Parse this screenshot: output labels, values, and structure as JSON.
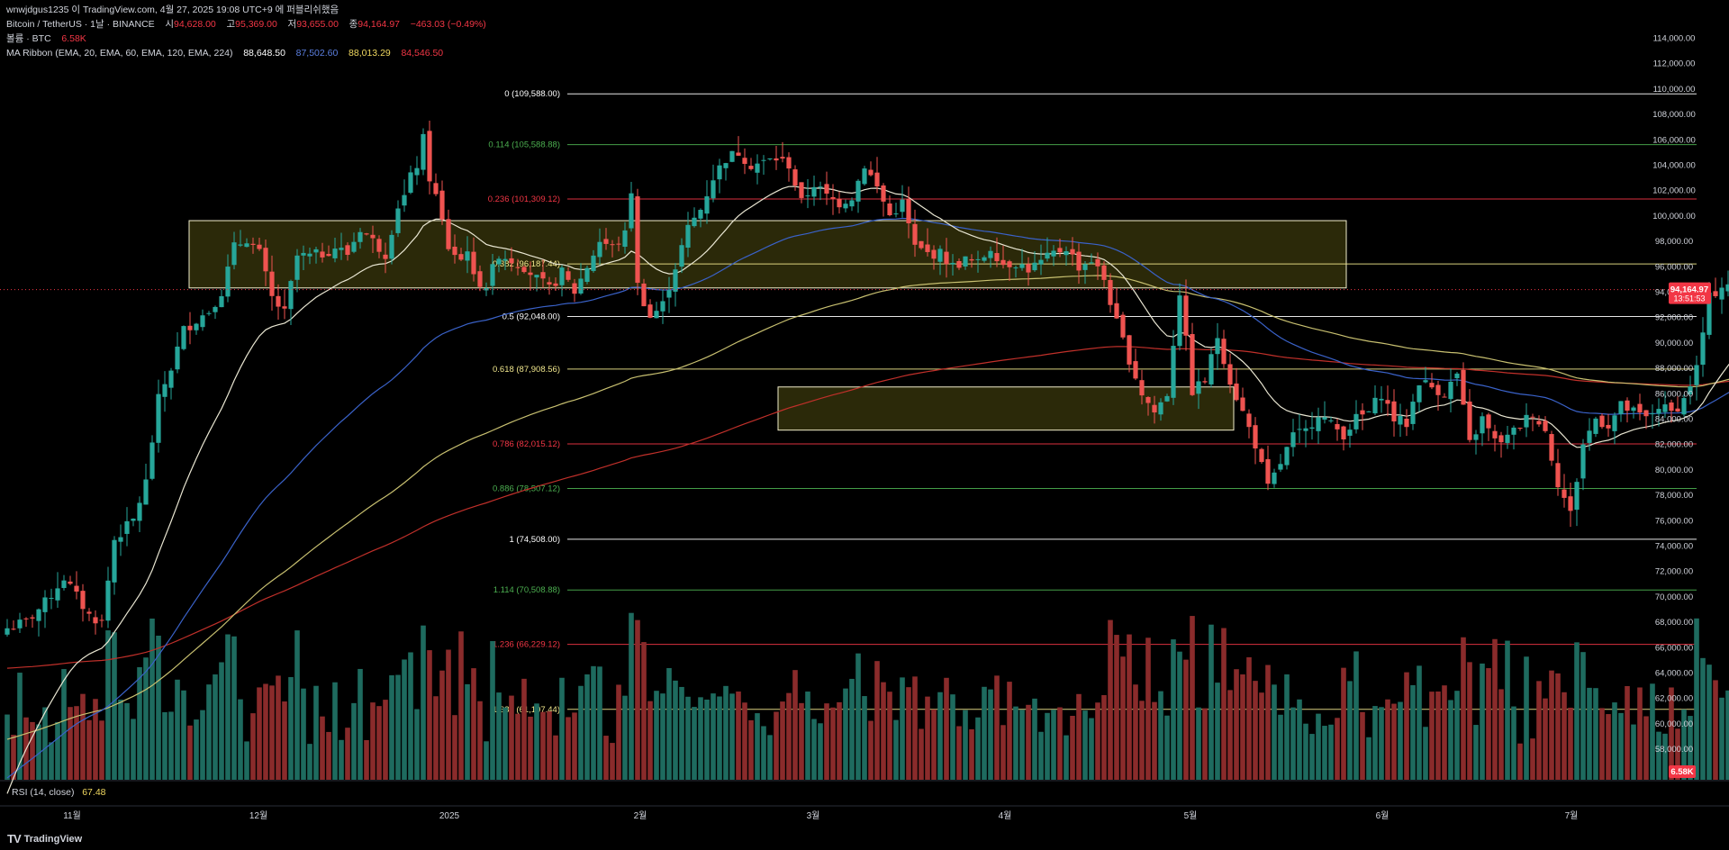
{
  "header": {
    "line1_prefix": "wnwjdgus1235 이 TradingView.com, 4월 27, 2025 19:08 UTC+9 에 퍼블리쉬했음",
    "symbol": "Bitcoin / TetherUS · 1날 · BINANCE",
    "open_label": "시",
    "open": "94,628.00",
    "high_label": "고",
    "high": "95,369.00",
    "low_label": "저",
    "low": "93,655.00",
    "close_label": "종",
    "close": "94,164.97",
    "change": "−463.03 (−0.49%)",
    "volume_label": "볼륨 · BTC",
    "volume_value": "6.58K",
    "ribbon_label": "MA Ribbon (EMA, 20, EMA, 60, EMA, 120, EMA, 224)",
    "ribbon_values": [
      "88,648.50",
      "87,502.60",
      "88,013.29",
      "84,546.50"
    ]
  },
  "rsi": {
    "label": "RSI (14, close)",
    "value": "67.48"
  },
  "brand": {
    "name": "TradingView",
    "mark": "TV"
  },
  "colors": {
    "up": "#26a69a",
    "down": "#ef5350",
    "ema20": "#e9e6d2",
    "ema60": "#3a62c9",
    "ema120": "#c8c070",
    "ema224": "#c0302a",
    "zone_fill": "rgba(96,90,20,0.45)",
    "zone_stroke": "#f2eecb",
    "price_tag": "#f23645"
  },
  "chart_data": {
    "type": "candlestick",
    "price_ticks": [
      "114,000.00",
      "112,000.00",
      "110,000.00",
      "108,000.00",
      "106,000.00",
      "104,000.00",
      "102,000.00",
      "100,000.00",
      "98,000.00",
      "96,000.00",
      "94,000.00",
      "92,000.00",
      "90,000.00",
      "88,000.00",
      "86,000.00",
      "84,000.00",
      "82,000.00",
      "80,000.00",
      "78,000.00",
      "76,000.00",
      "74,000.00",
      "72,000.00",
      "70,000.00",
      "68,000.00",
      "66,000.00",
      "64,000.00",
      "62,000.00",
      "60,000.00",
      "58,000.00",
      "00"
    ],
    "time_ticks": [
      "11월",
      "12월",
      "2025",
      "2월",
      "3월",
      "4월",
      "5월",
      "6월",
      "7월"
    ],
    "last_price": {
      "value": "94,164.97",
      "countdown": "13:51:53"
    },
    "volume_tag": "6.58K",
    "fib_levels": [
      {
        "label": "0 (109,588.00)",
        "price": 109588,
        "color": "#ffffff"
      },
      {
        "label": "0.114 (105,588.88)",
        "price": 105588.88,
        "color": "#4caf50"
      },
      {
        "label": "0.236 (101,309.12)",
        "price": 101309.12,
        "color": "#f23645"
      },
      {
        "label": "0.382 (96,187.44)",
        "price": 96187.44,
        "color": "#f0e68c"
      },
      {
        "label": "0.5 (92,048.00)",
        "price": 92048,
        "color": "#ffffff"
      },
      {
        "label": "0.618 (87,908.56)",
        "price": 87908.56,
        "color": "#f0e68c"
      },
      {
        "label": "0.786 (82,015.12)",
        "price": 82015.12,
        "color": "#f23645"
      },
      {
        "label": "0.886 (78,507.12)",
        "price": 78507.12,
        "color": "#4caf50"
      },
      {
        "label": "1 (74,508.00)",
        "price": 74508,
        "color": "#ffffff"
      },
      {
        "label": "1.114 (70,508.88)",
        "price": 70508.88,
        "color": "#4caf50"
      },
      {
        "label": "1.236 (66,229.12)",
        "price": 66229.12,
        "color": "#f23645"
      },
      {
        "label": "1.382 (61,107.44)",
        "price": 61107.44,
        "color": "#f0e68c"
      }
    ],
    "zones": [
      {
        "price_top": 99600,
        "price_bottom": 94300
      },
      {
        "price_top": 86500,
        "price_bottom": 83100
      }
    ],
    "close_keyframes": [
      [
        0,
        67500
      ],
      [
        3,
        68000
      ],
      [
        6,
        69500
      ],
      [
        9,
        71500
      ],
      [
        11,
        70000
      ],
      [
        13,
        68500
      ],
      [
        15,
        68000
      ],
      [
        17,
        74500
      ],
      [
        20,
        76000
      ],
      [
        22,
        79000
      ],
      [
        24,
        85500
      ],
      [
        26,
        88000
      ],
      [
        28,
        91000
      ],
      [
        30,
        91800
      ],
      [
        32,
        92500
      ],
      [
        34,
        94000
      ],
      [
        36,
        97500
      ],
      [
        38,
        98200
      ],
      [
        40,
        97000
      ],
      [
        42,
        93500
      ],
      [
        44,
        92300
      ],
      [
        46,
        96800
      ],
      [
        48,
        96800
      ],
      [
        50,
        97000
      ],
      [
        52,
        97500
      ],
      [
        54,
        97000
      ],
      [
        56,
        99000
      ],
      [
        58,
        98000
      ],
      [
        60,
        97000
      ],
      [
        62,
        100800
      ],
      [
        63,
        101500
      ],
      [
        64,
        103000
      ],
      [
        65,
        104000
      ],
      [
        66,
        106000
      ],
      [
        67,
        103000
      ],
      [
        68,
        101500
      ],
      [
        69,
        99500
      ],
      [
        70,
        97500
      ],
      [
        71,
        97000
      ],
      [
        72,
        96500
      ],
      [
        73,
        97500
      ],
      [
        74,
        95000
      ],
      [
        76,
        94500
      ],
      [
        78,
        97000
      ],
      [
        80,
        96500
      ],
      [
        82,
        96000
      ],
      [
        84,
        95000
      ],
      [
        86,
        94200
      ],
      [
        88,
        95500
      ],
      [
        90,
        94000
      ],
      [
        92,
        96000
      ],
      [
        94,
        98000
      ],
      [
        96,
        97500
      ],
      [
        98,
        98500
      ],
      [
        99,
        102000
      ],
      [
        100,
        94500
      ],
      [
        102,
        92000
      ],
      [
        104,
        93000
      ],
      [
        106,
        96000
      ],
      [
        108,
        99000
      ],
      [
        110,
        100500
      ],
      [
        112,
        103000
      ],
      [
        114,
        104500
      ],
      [
        116,
        105000
      ],
      [
        118,
        104000
      ],
      [
        120,
        104200
      ],
      [
        122,
        104500
      ],
      [
        124,
        104000
      ],
      [
        126,
        101000
      ],
      [
        128,
        102500
      ],
      [
        130,
        101500
      ],
      [
        132,
        101000
      ],
      [
        134,
        101500
      ],
      [
        136,
        104000
      ],
      [
        138,
        102200
      ],
      [
        140,
        100000
      ],
      [
        142,
        101000
      ],
      [
        144,
        97500
      ],
      [
        146,
        97000
      ],
      [
        148,
        97000
      ],
      [
        150,
        96000
      ],
      [
        152,
        96500
      ],
      [
        154,
        96200
      ],
      [
        156,
        97500
      ],
      [
        158,
        96200
      ],
      [
        160,
        96300
      ],
      [
        162,
        95800
      ],
      [
        164,
        96300
      ],
      [
        166,
        97000
      ],
      [
        168,
        97500
      ],
      [
        170,
        96000
      ],
      [
        172,
        96500
      ],
      [
        174,
        95000
      ],
      [
        176,
        91500
      ],
      [
        178,
        88700
      ],
      [
        180,
        86000
      ],
      [
        182,
        84500
      ],
      [
        184,
        86000
      ],
      [
        186,
        94000
      ],
      [
        188,
        86200
      ],
      [
        190,
        87000
      ],
      [
        192,
        90500
      ],
      [
        194,
        87000
      ],
      [
        196,
        84500
      ],
      [
        198,
        82000
      ],
      [
        200,
        78500
      ],
      [
        202,
        80500
      ],
      [
        204,
        82600
      ],
      [
        206,
        83000
      ],
      [
        208,
        84500
      ],
      [
        210,
        83500
      ],
      [
        212,
        82800
      ],
      [
        214,
        84000
      ],
      [
        216,
        84500
      ],
      [
        218,
        86000
      ],
      [
        220,
        84000
      ],
      [
        222,
        83600
      ],
      [
        224,
        87000
      ],
      [
        226,
        86500
      ],
      [
        228,
        86000
      ],
      [
        230,
        87500
      ],
      [
        232,
        82000
      ],
      [
        234,
        84000
      ],
      [
        236,
        82200
      ],
      [
        238,
        82500
      ],
      [
        240,
        83500
      ],
      [
        242,
        84500
      ],
      [
        244,
        83000
      ],
      [
        246,
        79000
      ],
      [
        248,
        76500
      ],
      [
        250,
        82000
      ],
      [
        252,
        84000
      ],
      [
        254,
        83500
      ],
      [
        256,
        85000
      ],
      [
        258,
        84500
      ],
      [
        260,
        84000
      ],
      [
        262,
        85000
      ],
      [
        264,
        84500
      ],
      [
        266,
        85500
      ],
      [
        268,
        88000
      ],
      [
        270,
        93500
      ],
      [
        272,
        94500
      ],
      [
        274,
        94800
      ],
      [
        275,
        94165
      ]
    ]
  }
}
